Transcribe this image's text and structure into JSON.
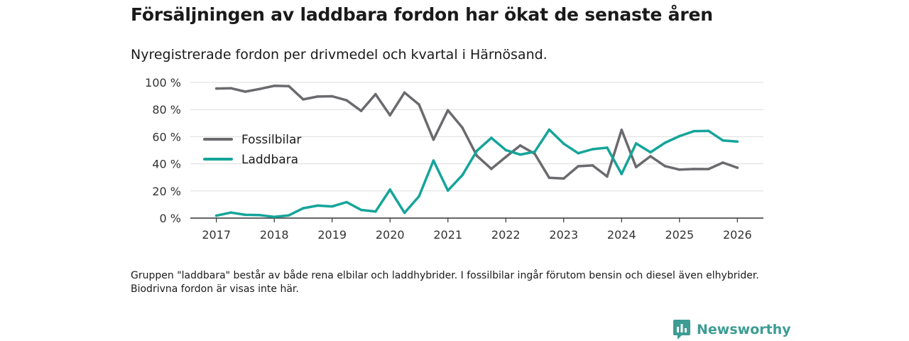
{
  "title": "Försäljningen av laddbara fordon har ökat de senaste åren",
  "subtitle": "Nyregistrerade fordon per drivmedel och kvartal i Härnösand.",
  "footnote": "Gruppen \"laddbara\" består av både rena elbilar och laddhybrider. I fossilbilar ingår förutom bensin och diesel även elhybrider. Biodrivna fordon är visas inte här.",
  "brand": {
    "name": "Newsworthy",
    "icon": "newsworthy-chart-icon",
    "color": "#3d9c93"
  },
  "chart_data": {
    "type": "line",
    "title": "Försäljningen av laddbara fordon har ökat de senaste åren",
    "xlabel": "",
    "ylabel": "",
    "x": [
      2017,
      2017.25,
      2017.5,
      2017.75,
      2018,
      2018.25,
      2018.5,
      2018.75,
      2019,
      2019.25,
      2019.5,
      2019.75,
      2020,
      2020.25,
      2020.5,
      2020.75,
      2021,
      2021.25,
      2021.5,
      2021.75,
      2022,
      2022.25,
      2022.5,
      2022.75,
      2023,
      2023.25,
      2023.5,
      2023.75,
      2024,
      2024.25,
      2024.5,
      2024.75,
      2025,
      2025.25,
      2025.5,
      2025.75,
      2026
    ],
    "xlim": [
      2016.55,
      2026.45
    ],
    "ylim": [
      0,
      100
    ],
    "xticks": [
      2017,
      2018,
      2019,
      2020,
      2021,
      2022,
      2023,
      2024,
      2025,
      2026
    ],
    "xtick_labels": [
      "2017",
      "2018",
      "2019",
      "2020",
      "2021",
      "2022",
      "2023",
      "2024",
      "2025",
      "2026"
    ],
    "yticks": [
      0,
      20,
      40,
      60,
      80,
      100
    ],
    "ytick_labels": [
      "0 %",
      "20 %",
      "40 %",
      "60 %",
      "80 %",
      "100 %"
    ],
    "grid": true,
    "legend_position": "left",
    "series": [
      {
        "name": "Fossilbilar",
        "color": "#6b6a6e",
        "values": [
          95.5,
          95.7,
          93.2,
          95.2,
          97.5,
          97.3,
          87.5,
          89.6,
          89.8,
          86.8,
          79.0,
          91.3,
          75.8,
          92.5,
          83.7,
          57.8,
          79.5,
          66.6,
          45.9,
          36.3,
          45.1,
          53.5,
          47.4,
          29.7,
          29.2,
          38.2,
          38.8,
          30.7,
          65.0,
          37.6,
          45.6,
          38.3,
          35.7,
          36.2,
          36.1,
          40.9,
          37.1
        ]
      },
      {
        "name": "Laddbara",
        "color": "#15a49a",
        "values": [
          1.8,
          4.1,
          2.4,
          2.2,
          0.9,
          2.0,
          7.3,
          9.2,
          8.6,
          11.8,
          6.0,
          4.8,
          21.0,
          3.9,
          16.0,
          42.4,
          20.3,
          31.7,
          49.6,
          59.1,
          50.1,
          46.8,
          48.9,
          65.2,
          54.8,
          47.8,
          50.8,
          51.9,
          32.5,
          55.0,
          48.5,
          55.5,
          60.4,
          64.1,
          64.3,
          57.2,
          56.4
        ]
      }
    ]
  }
}
